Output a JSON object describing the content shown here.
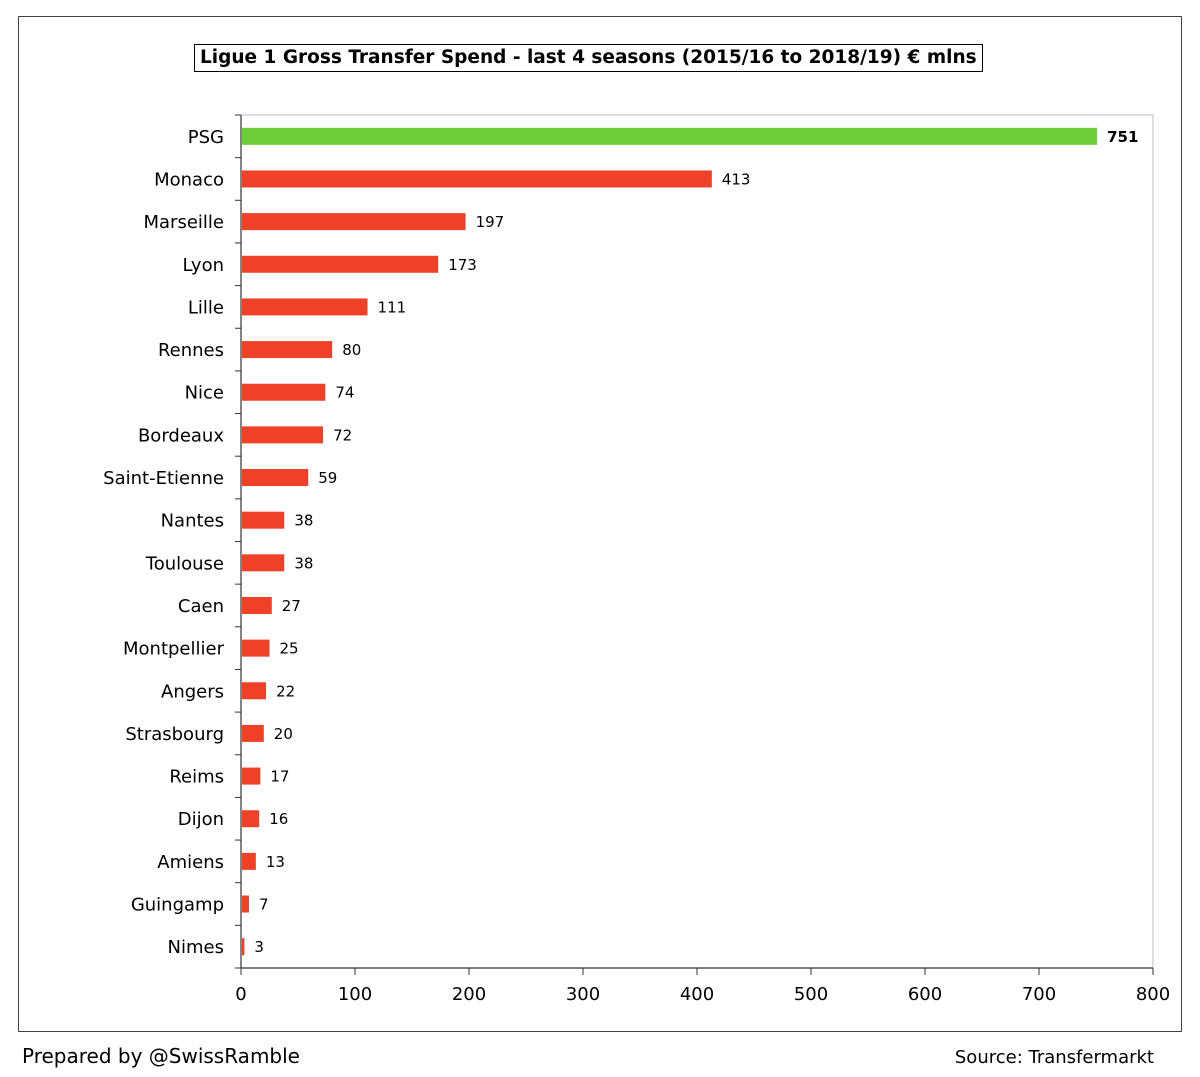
{
  "chart_data": {
    "type": "bar",
    "orientation": "horizontal",
    "title": "Ligue 1 Gross Transfer Spend - last 4 seasons (2015/16 to 2018/19) € mlns",
    "categories": [
      "PSG",
      "Monaco",
      "Marseille",
      "Lyon",
      "Lille",
      "Rennes",
      "Nice",
      "Bordeaux",
      "Saint-Etienne",
      "Nantes",
      "Toulouse",
      "Caen",
      "Montpellier",
      "Angers",
      "Strasbourg",
      "Reims",
      "Dijon",
      "Amiens",
      "Guingamp",
      "Nimes"
    ],
    "values": [
      751,
      413,
      197,
      173,
      111,
      80,
      74,
      72,
      59,
      38,
      38,
      27,
      25,
      22,
      20,
      17,
      16,
      13,
      7,
      3
    ],
    "data_labels": [
      "751",
      "413",
      "197",
      "173",
      "111",
      "80",
      "74",
      "72",
      "59",
      "38",
      "38",
      "27",
      "25",
      "22",
      "20",
      "17",
      "16",
      "13",
      "7",
      "3"
    ],
    "xlim": [
      0,
      800
    ],
    "x_ticks": [
      0,
      100,
      200,
      300,
      400,
      500,
      600,
      700,
      800
    ],
    "x_tick_labels": [
      "0",
      "100",
      "200",
      "300",
      "400",
      "500",
      "600",
      "700",
      "800"
    ],
    "highlight_category": "PSG",
    "colors": {
      "highlight": "#6dce3a",
      "default": "#ee4128"
    },
    "grid": false,
    "legend": "none"
  },
  "footer": {
    "left": "Prepared by @SwissRamble",
    "right": "Source: Transfermarkt"
  }
}
